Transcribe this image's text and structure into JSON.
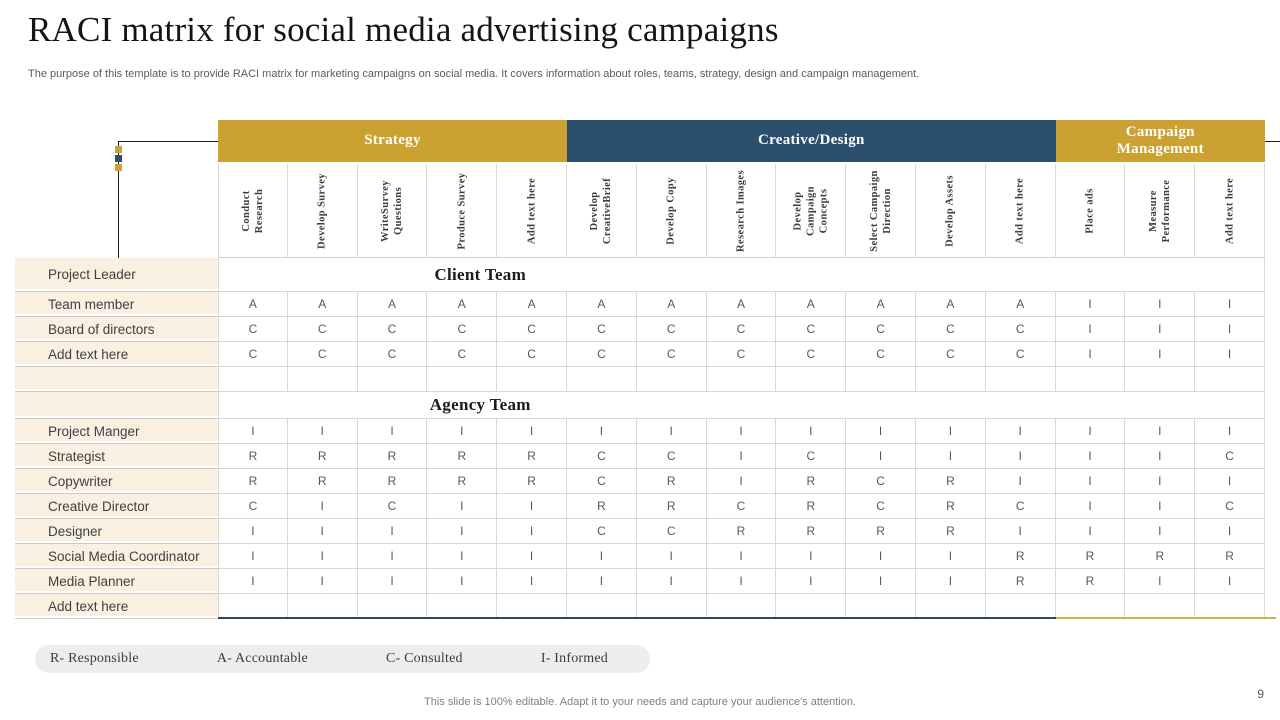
{
  "slide": {
    "title": "RACI matrix for social media advertising campaigns",
    "subtitle": "The purpose of this template is to provide RACI matrix for marketing campaigns on social media. It covers information about roles, teams, strategy, design and campaign management.",
    "footer": "This slide is 100% editable. Adapt it to your needs and capture your audience's attention.",
    "page_number": "9"
  },
  "colors": {
    "gold": "#CBA132",
    "navy": "#2C4F6D",
    "beige": "#FAF0E1",
    "bottom_accent_navy": "#33475C",
    "bottom_accent_gold": "#C9B44A"
  },
  "table": {
    "groups": [
      {
        "label": "Strategy",
        "span": 5,
        "color": "gold"
      },
      {
        "label": "Creative/Design",
        "span": 7,
        "color": "navy"
      },
      {
        "label": "Campaign Management",
        "span": 3,
        "color": "gold"
      }
    ],
    "columns": [
      "Conduct Research",
      "Develop Survey",
      "WriteSurvey Questions",
      "Produce Survey",
      "Add text here",
      "Develop CreativeBrief",
      "Develop Copy",
      "Research Images",
      "Develop Campaign Concepts",
      "Select Campaign Direction",
      "Develop Assets",
      "Add text here",
      "Place ads",
      "Measure Performance",
      "Add text here"
    ],
    "rows": [
      {
        "label": "Project Leader",
        "section": "Client Team"
      },
      {
        "label": "Team member",
        "cells": [
          "A",
          "A",
          "A",
          "A",
          "A",
          "A",
          "A",
          "A",
          "A",
          "A",
          "A",
          "A",
          "I",
          "I",
          "I"
        ]
      },
      {
        "label": "Board of directors",
        "cells": [
          "C",
          "C",
          "C",
          "C",
          "C",
          "C",
          "C",
          "C",
          "C",
          "C",
          "C",
          "C",
          "I",
          "I",
          "I"
        ]
      },
      {
        "label": "Add text here",
        "cells": [
          "C",
          "C",
          "C",
          "C",
          "C",
          "C",
          "C",
          "C",
          "C",
          "C",
          "C",
          "C",
          "I",
          "I",
          "I"
        ]
      },
      {
        "label": "",
        "cells": [
          "",
          "",
          "",
          "",
          "",
          "",
          "",
          "",
          "",
          "",
          "",
          "",
          "",
          "",
          ""
        ]
      },
      {
        "label": "",
        "section": "Agency Team"
      },
      {
        "label": "Project Manger",
        "cells": [
          "I",
          "I",
          "I",
          "I",
          "I",
          "I",
          "I",
          "I",
          "I",
          "I",
          "I",
          "I",
          "I",
          "I",
          "I"
        ]
      },
      {
        "label": "Strategist",
        "cells": [
          "R",
          "R",
          "R",
          "R",
          "R",
          "C",
          "C",
          "I",
          "C",
          "I",
          "I",
          "I",
          "I",
          "I",
          "C"
        ]
      },
      {
        "label": "Copywriter",
        "cells": [
          "R",
          "R",
          "R",
          "R",
          "R",
          "C",
          "R",
          "I",
          "R",
          "C",
          "R",
          "I",
          "I",
          "I",
          "I"
        ]
      },
      {
        "label": "Creative Director",
        "cells": [
          "C",
          "I",
          "C",
          "I",
          "I",
          "R",
          "R",
          "C",
          "R",
          "C",
          "R",
          "C",
          "I",
          "I",
          "C"
        ]
      },
      {
        "label": "Designer",
        "cells": [
          "I",
          "I",
          "I",
          "I",
          "I",
          "C",
          "C",
          "R",
          "R",
          "R",
          "R",
          "I",
          "I",
          "I",
          "I"
        ]
      },
      {
        "label": "Social Media Coordinator",
        "cells": [
          "I",
          "I",
          "I",
          "I",
          "I",
          "I",
          "I",
          "I",
          "I",
          "I",
          "I",
          "R",
          "R",
          "R",
          "R"
        ]
      },
      {
        "label": "Media Planner",
        "cells": [
          "I",
          "I",
          "I",
          "I",
          "I",
          "I",
          "I",
          "I",
          "I",
          "I",
          "I",
          "R",
          "R",
          "I",
          "I"
        ]
      },
      {
        "label": "Add text here",
        "cells": [
          "",
          "",
          "",
          "",
          "",
          "",
          "",
          "",
          "",
          "",
          "",
          "",
          "",
          "",
          ""
        ]
      }
    ]
  },
  "legend": {
    "items": [
      "R- Responsible",
      "A- Accountable",
      "C- Consulted",
      "I- Informed"
    ]
  }
}
